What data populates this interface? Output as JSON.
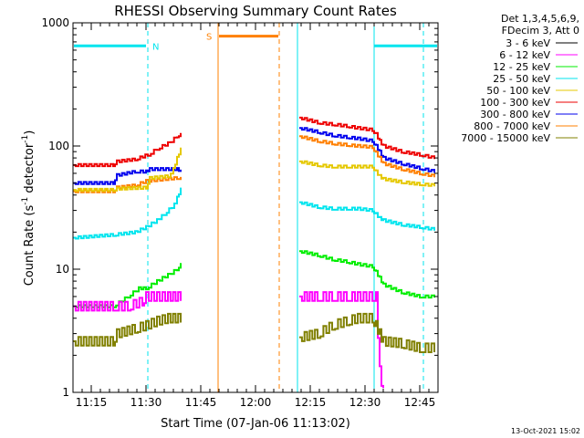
{
  "chart_data": {
    "type": "line",
    "title": "RHESSI Observing Summary Count Rates",
    "xlabel": "Start Time (07-Jan-06 11:13:02)",
    "ylabel_main": "Count Rate (s",
    "ylabel_sup1": "-1",
    "ylabel_mid": " detector",
    "ylabel_sup2": "-1",
    "ylabel_end": ")",
    "yscale": "log",
    "ylim": [
      1,
      1000
    ],
    "xlim_minutes": [
      -3,
      97
    ],
    "x_ticks": [
      {
        "m": 2,
        "label": "11:15"
      },
      {
        "m": 17,
        "label": "11:30"
      },
      {
        "m": 32,
        "label": "11:45"
      },
      {
        "m": 47,
        "label": "12:00"
      },
      {
        "m": 62,
        "label": "12:15"
      },
      {
        "m": 77,
        "label": "12:30"
      },
      {
        "m": 92,
        "label": "12:45"
      }
    ],
    "y_ticks": [
      {
        "v": 1,
        "label": "1"
      },
      {
        "v": 10,
        "label": "10"
      },
      {
        "v": 100,
        "label": "100"
      },
      {
        "v": 1000,
        "label": "1000"
      }
    ],
    "legend": {
      "header": [
        "Det 1,3,4,5,6,9,",
        "FDecim 3, Att 0"
      ],
      "entries": [
        {
          "name": "3 - 6 keV",
          "color": "#000000"
        },
        {
          "name": "6 - 12 keV",
          "color": "#ff00ff"
        },
        {
          "name": "12 - 25 keV",
          "color": "#00ee00"
        },
        {
          "name": "25 - 50 keV",
          "color": "#00e5ee"
        },
        {
          "name": "50 - 100 keV",
          "color": "#e5c800"
        },
        {
          "name": "100 - 300 keV",
          "color": "#ee0000"
        },
        {
          "name": "300 - 800 keV",
          "color": "#0000ee"
        },
        {
          "name": "800 - 7000 keV",
          "color": "#ff8000"
        },
        {
          "name": "7000 - 15000 keV",
          "color": "#808000"
        }
      ]
    },
    "annotations": [
      {
        "label": "N",
        "color": "#00e5ee"
      },
      {
        "label": "S",
        "color": "#ff8000"
      }
    ],
    "night_intervals": [
      [
        -3,
        17.5
      ],
      [
        79.5,
        97
      ]
    ],
    "saa_intervals": [
      [
        36.5,
        54
      ]
    ],
    "data_gap": [
      36.5,
      59
    ],
    "series": [
      {
        "name": "100 - 300 keV",
        "color": "#ee0000",
        "points": [
          [
            -3,
            70
          ],
          [
            8,
            70
          ],
          [
            9,
            75
          ],
          [
            14,
            78
          ],
          [
            17.5,
            85
          ],
          [
            20,
            95
          ],
          [
            23,
            105
          ],
          [
            25.5,
            120
          ],
          [
            26.5,
            125
          ],
          [
            59,
            170
          ],
          [
            64,
            155
          ],
          [
            68,
            150
          ],
          [
            72,
            145
          ],
          [
            75,
            140
          ],
          [
            79,
            135
          ],
          [
            80,
            125
          ],
          [
            81,
            110
          ],
          [
            82,
            100
          ],
          [
            87,
            90
          ],
          [
            92,
            85
          ],
          [
            96,
            80
          ]
        ]
      },
      {
        "name": "300 - 800 keV",
        "color": "#0000ee",
        "points": [
          [
            -3,
            50
          ],
          [
            8,
            50
          ],
          [
            9,
            58
          ],
          [
            14,
            62
          ],
          [
            17,
            62
          ],
          [
            18,
            65
          ],
          [
            25.5,
            65
          ],
          [
            26.5,
            63
          ],
          [
            59,
            140
          ],
          [
            64,
            130
          ],
          [
            68,
            122
          ],
          [
            72,
            118
          ],
          [
            75,
            115
          ],
          [
            79,
            110
          ],
          [
            80,
            100
          ],
          [
            81,
            90
          ],
          [
            82,
            80
          ],
          [
            87,
            72
          ],
          [
            92,
            66
          ],
          [
            96,
            62
          ]
        ]
      },
      {
        "name": "800 - 7000 keV",
        "color": "#ff8000",
        "points": [
          [
            -3,
            43
          ],
          [
            8,
            43
          ],
          [
            9,
            46
          ],
          [
            14,
            48
          ],
          [
            17,
            52
          ],
          [
            25.5,
            55
          ],
          [
            26.5,
            55
          ],
          [
            59,
            120
          ],
          [
            64,
            110
          ],
          [
            68,
            105
          ],
          [
            72,
            102
          ],
          [
            75,
            100
          ],
          [
            79,
            98
          ],
          [
            80,
            88
          ],
          [
            81,
            80
          ],
          [
            82,
            72
          ],
          [
            87,
            65
          ],
          [
            92,
            60
          ],
          [
            96,
            57
          ]
        ]
      },
      {
        "name": "50 - 100 keV",
        "color": "#e5c800",
        "points": [
          [
            -3,
            44
          ],
          [
            8,
            44
          ],
          [
            9,
            45
          ],
          [
            17,
            46
          ],
          [
            18,
            55
          ],
          [
            23,
            57
          ],
          [
            24.5,
            65
          ],
          [
            25.5,
            80
          ],
          [
            26.5,
            95
          ],
          [
            59,
            75
          ],
          [
            64,
            70
          ],
          [
            68,
            68
          ],
          [
            72,
            68
          ],
          [
            75,
            68
          ],
          [
            79,
            68
          ],
          [
            80,
            62
          ],
          [
            81,
            57
          ],
          [
            82,
            54
          ],
          [
            87,
            51
          ],
          [
            92,
            49
          ],
          [
            96,
            48
          ]
        ]
      },
      {
        "name": "25 - 50 keV",
        "color": "#00e5ee",
        "points": [
          [
            -3,
            18
          ],
          [
            8,
            19
          ],
          [
            14,
            20
          ],
          [
            17,
            22
          ],
          [
            20,
            25
          ],
          [
            22,
            28
          ],
          [
            24,
            32
          ],
          [
            25.5,
            38
          ],
          [
            26.5,
            45
          ],
          [
            59,
            35
          ],
          [
            64,
            32
          ],
          [
            68,
            31
          ],
          [
            72,
            31
          ],
          [
            75,
            31
          ],
          [
            79,
            30
          ],
          [
            80,
            28
          ],
          [
            81,
            26
          ],
          [
            82,
            25
          ],
          [
            87,
            23
          ],
          [
            92,
            22
          ],
          [
            96,
            21
          ]
        ]
      },
      {
        "name": "12 - 25 keV",
        "color": "#00ee00",
        "points": [
          [
            -3,
            5
          ],
          [
            8,
            5
          ],
          [
            12,
            6
          ],
          [
            15,
            7
          ],
          [
            17,
            7
          ],
          [
            20,
            8
          ],
          [
            23,
            9
          ],
          [
            25.5,
            10
          ],
          [
            26.5,
            11
          ],
          [
            59,
            14
          ],
          [
            64,
            13
          ],
          [
            68,
            12
          ],
          [
            72,
            11.5
          ],
          [
            75,
            11
          ],
          [
            79,
            10.5
          ],
          [
            80,
            9.5
          ],
          [
            81,
            8.5
          ],
          [
            82,
            7.5
          ],
          [
            87,
            6.5
          ],
          [
            92,
            6
          ],
          [
            96,
            6
          ]
        ]
      },
      {
        "name": "6 - 12 keV",
        "color": "#ff00ff",
        "points": [
          [
            -3,
            5
          ],
          [
            8,
            5
          ],
          [
            12,
            5
          ],
          [
            16,
            5.5
          ],
          [
            17,
            6
          ],
          [
            20,
            6
          ],
          [
            23,
            6
          ],
          [
            26.5,
            6
          ],
          [
            59,
            6
          ],
          [
            64,
            6
          ],
          [
            68,
            6
          ],
          [
            72,
            6
          ],
          [
            75,
            6
          ],
          [
            79,
            6
          ],
          [
            80,
            6
          ],
          [
            81,
            1.5
          ],
          [
            82,
            1
          ]
        ]
      },
      {
        "name": "7000 - 15000 keV",
        "color": "#808000",
        "points": [
          [
            -3,
            2.6
          ],
          [
            8,
            2.6
          ],
          [
            9,
            3
          ],
          [
            14,
            3.3
          ],
          [
            17,
            3.5
          ],
          [
            20,
            3.8
          ],
          [
            23,
            4
          ],
          [
            26.5,
            4
          ],
          [
            59,
            2.8
          ],
          [
            64,
            3
          ],
          [
            68,
            3.5
          ],
          [
            72,
            3.8
          ],
          [
            75,
            4
          ],
          [
            79,
            4
          ],
          [
            80,
            3.5
          ],
          [
            81,
            3
          ],
          [
            82,
            2.6
          ],
          [
            87,
            2.5
          ],
          [
            92,
            2.3
          ],
          [
            96,
            2.3
          ]
        ]
      }
    ]
  },
  "footer": {
    "timestamp": "13-Oct-2021 15:02"
  }
}
